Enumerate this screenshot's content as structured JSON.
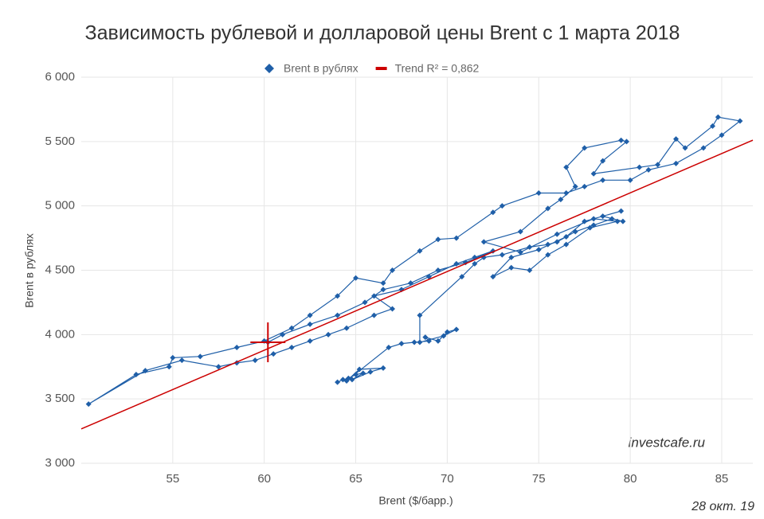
{
  "chart_data": {
    "type": "scatter",
    "title": "Зависимость рублевой и долларовой цены Brent с 1 марта 2018",
    "x_label": "Brent ($/барр.)",
    "y_label": "Brent в рублях",
    "watermark": "investcafe.ru",
    "date_note": "28 окт. 19",
    "xlim": [
      50,
      86.7
    ],
    "ylim": [
      3000,
      6000
    ],
    "xticks": [
      55,
      60,
      65,
      70,
      75,
      80,
      85
    ],
    "yticks": [
      {
        "value": 3000,
        "label": "3 000"
      },
      {
        "value": 3500,
        "label": "3 500"
      },
      {
        "value": 4000,
        "label": "4 000"
      },
      {
        "value": 4500,
        "label": "4 500"
      },
      {
        "value": 5000,
        "label": "5 000"
      },
      {
        "value": 5500,
        "label": "5 500"
      },
      {
        "value": 6000,
        "label": "6 000"
      }
    ],
    "grid": true,
    "legend": "top",
    "highlight": {
      "x": 60.2,
      "y": 3940,
      "color": "#cc0000"
    },
    "series": [
      {
        "name": "Brent в рублях",
        "color": "#1f5fa8",
        "marker": "diamond",
        "connected": true,
        "x": [
          64.0,
          64.3,
          64.6,
          65.0,
          65.4,
          64.8,
          65.8,
          66.5,
          65.2,
          64.5,
          66.8,
          67.5,
          68.2,
          69.0,
          68.8,
          69.5,
          70.0,
          70.5,
          69.8,
          68.5,
          68.5,
          70.8,
          71.5,
          72.0,
          73.0,
          74.5,
          75.5,
          76.0,
          77.0,
          78.0,
          79.0,
          79.6,
          78.5,
          79.5,
          77.5,
          76.5,
          75.0,
          73.5,
          72.5,
          73.5,
          74.5,
          75.5,
          76.5,
          77.8,
          79.3,
          78.0,
          76.0,
          74.0,
          72.0,
          74.0,
          75.5,
          76.2,
          77.0,
          76.5,
          77.5,
          79.5,
          79.8,
          78.5,
          78.0,
          80.5,
          81.5,
          82.5,
          83.0,
          84.5,
          84.8,
          86.0,
          85.0,
          84.0,
          82.5,
          81.0,
          80.0,
          78.5,
          77.5,
          76.5,
          75.0,
          73.0,
          72.5,
          70.5,
          69.5,
          68.5,
          67.0,
          66.5,
          65.0,
          64.0,
          62.5,
          61.5,
          60.0,
          58.5,
          56.5,
          55.0,
          54.8,
          53.0,
          50.4,
          53.5,
          55.5,
          57.5,
          58.5,
          59.5,
          60.5,
          61.5,
          62.5,
          63.5,
          64.5,
          66.0,
          67.0,
          66.0,
          67.5,
          69.0,
          70.5,
          71.5,
          72.5,
          71.0,
          69.5,
          68.0,
          66.5,
          65.5,
          64.0,
          62.5,
          61.0,
          60.2
        ],
        "values": [
          3630,
          3650,
          3660,
          3690,
          3700,
          3650,
          3710,
          3740,
          3730,
          3640,
          3900,
          3930,
          3940,
          3950,
          3980,
          3950,
          4020,
          4040,
          3990,
          3940,
          4150,
          4450,
          4550,
          4600,
          4620,
          4680,
          4700,
          4720,
          4800,
          4850,
          4900,
          4880,
          4920,
          4960,
          4880,
          4760,
          4660,
          4600,
          4450,
          4520,
          4500,
          4620,
          4700,
          4830,
          4880,
          4900,
          4780,
          4640,
          4720,
          4800,
          4980,
          5050,
          5150,
          5300,
          5450,
          5510,
          5500,
          5350,
          5250,
          5300,
          5320,
          5520,
          5450,
          5620,
          5690,
          5660,
          5550,
          5450,
          5330,
          5280,
          5200,
          5200,
          5150,
          5100,
          5100,
          5000,
          4950,
          4750,
          4740,
          4650,
          4500,
          4400,
          4440,
          4300,
          4150,
          4050,
          3950,
          3900,
          3830,
          3820,
          3750,
          3690,
          3460,
          3720,
          3800,
          3750,
          3780,
          3800,
          3850,
          3900,
          3950,
          4000,
          4050,
          4150,
          4200,
          4300,
          4350,
          4450,
          4550,
          4600,
          4650,
          4560,
          4500,
          4400,
          4350,
          4250,
          4150,
          4080,
          4000,
          3940
        ]
      },
      {
        "name": "Trend R² = 0,862",
        "color": "#cc0000",
        "marker": "line",
        "x": [
          50,
          86.7
        ],
        "values": [
          3267,
          5511
        ]
      }
    ]
  }
}
